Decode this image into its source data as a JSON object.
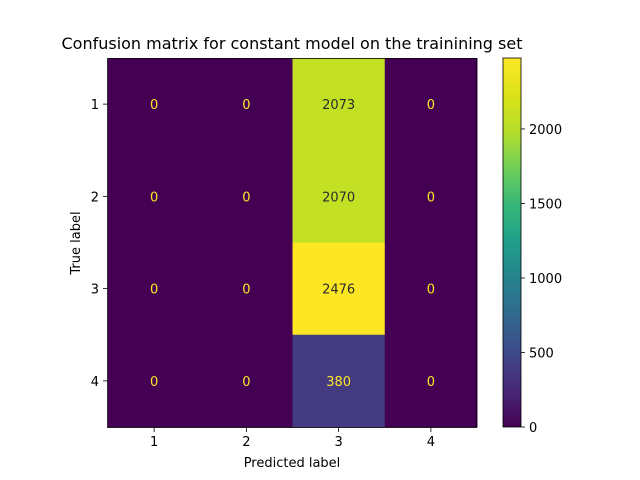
{
  "chart_data": {
    "type": "heatmap",
    "title": "Confusion matrix for constant model on the trainining set",
    "xlabel": "Predicted label",
    "ylabel": "True label",
    "x_categories": [
      "1",
      "2",
      "3",
      "4"
    ],
    "y_categories": [
      "1",
      "2",
      "3",
      "4"
    ],
    "values": [
      [
        0,
        0,
        2073,
        0
      ],
      [
        0,
        0,
        2070,
        0
      ],
      [
        0,
        0,
        2476,
        0
      ],
      [
        0,
        0,
        380,
        0
      ]
    ],
    "colormap": "viridis",
    "color_range": [
      0,
      2476
    ],
    "colorbar_ticks": [
      "0",
      "500",
      "1000",
      "1500",
      "2000"
    ],
    "colorbar_tick_values": [
      0,
      500,
      1000,
      1500,
      2000
    ],
    "grid": false
  }
}
